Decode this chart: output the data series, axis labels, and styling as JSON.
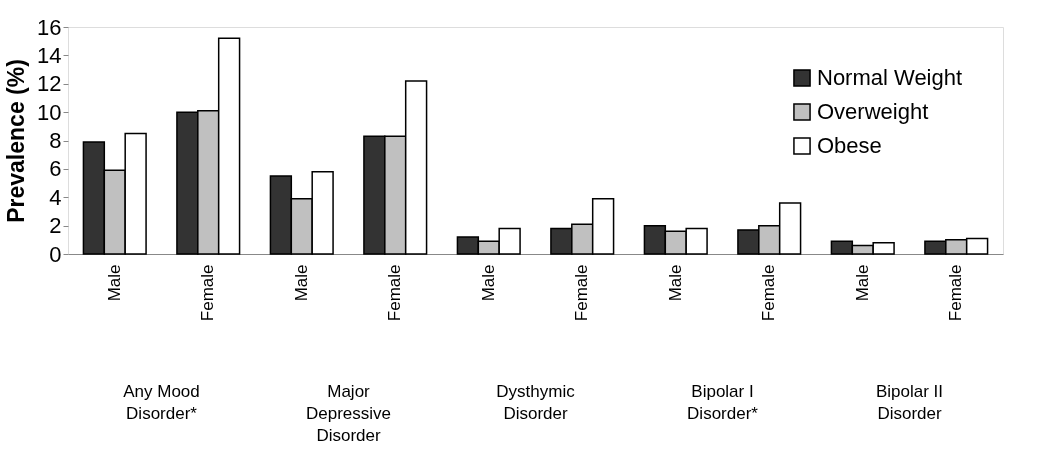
{
  "chart_data": {
    "type": "bar",
    "ylabel": "Prevalence (%)",
    "categories": [
      "Male",
      "Female",
      "Male",
      "Female",
      "Male",
      "Female",
      "Male",
      "Female",
      "Male",
      "Female"
    ],
    "series": [
      {
        "name": "Normal Weight",
        "color": "#333333",
        "values": [
          7.9,
          10.0,
          5.5,
          8.3,
          1.2,
          1.8,
          2.0,
          1.7,
          0.9,
          0.9
        ]
      },
      {
        "name": "Overweight",
        "color": "#c0c0c0",
        "values": [
          5.9,
          10.1,
          3.9,
          8.3,
          0.9,
          2.1,
          1.6,
          2.0,
          0.6,
          1.0
        ]
      },
      {
        "name": "Obese",
        "color": "#ffffff",
        "values": [
          8.5,
          15.2,
          5.8,
          12.2,
          1.8,
          3.9,
          1.8,
          3.6,
          0.8,
          1.1
        ]
      }
    ],
    "ylim": [
      0,
      16
    ],
    "yticks": [
      0,
      2,
      4,
      6,
      8,
      10,
      12,
      14,
      16
    ],
    "annotations": [
      "Any Mood\nDisorder*",
      "Major\nDepressive\nDisorder",
      "Dysthymic\nDisorder",
      "Bipolar I\nDisorder*",
      "Bipolar II\nDisorder"
    ],
    "grid": false,
    "legend": "top right"
  }
}
